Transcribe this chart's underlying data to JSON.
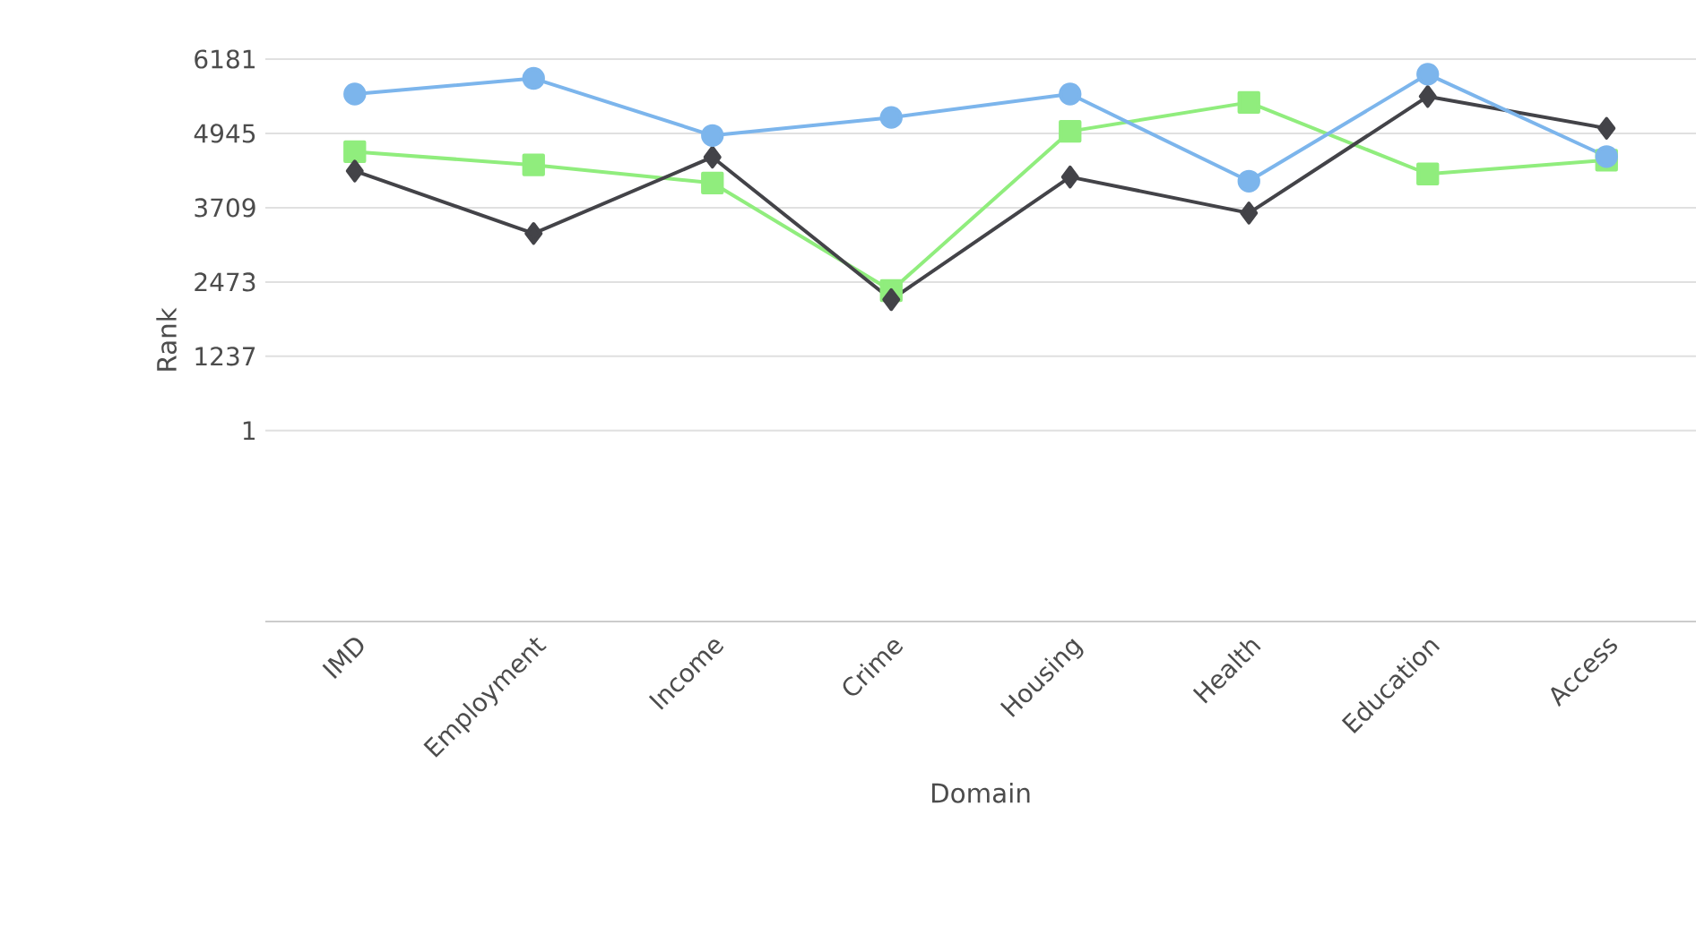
{
  "chart_data": {
    "type": "line",
    "xlabel": "Domain",
    "ylabel": "Rank",
    "categories": [
      "IMD",
      "Employment",
      "Income",
      "Crime",
      "Housing",
      "Health",
      "Education",
      "Access"
    ],
    "series": [
      {
        "color": "#7cb5ec",
        "marker": "circle",
        "values": [
          5600,
          5860,
          4910,
          5210,
          5600,
          4150,
          5930,
          4560
        ]
      },
      {
        "color": "#434348",
        "marker": "diamond",
        "values": [
          4320,
          3280,
          4550,
          2180,
          4220,
          3620,
          5560,
          5030
        ]
      },
      {
        "color": "#90ed7d",
        "marker": "square",
        "values": [
          4640,
          4420,
          4120,
          2330,
          4980,
          5460,
          4270,
          4500
        ]
      }
    ],
    "ylim": [
      -3175,
      6181
    ],
    "yticks": [
      1,
      1237,
      2473,
      3709,
      4945,
      6181
    ],
    "grid": "y"
  }
}
